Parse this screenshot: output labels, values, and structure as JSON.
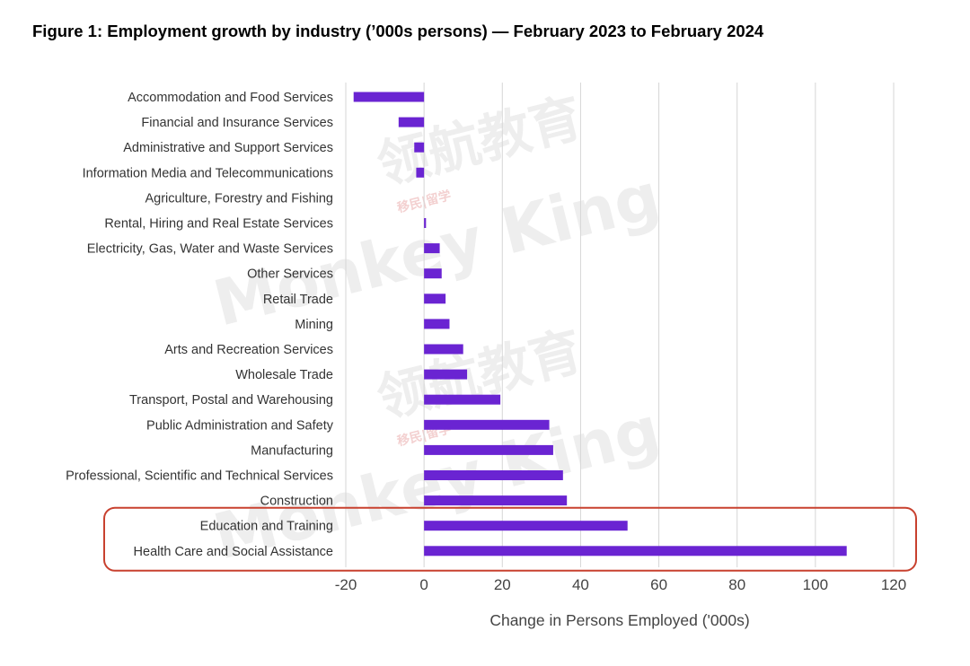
{
  "figure_title": "Figure 1: Employment growth by industry (’000s persons) — February 2023 to February 2024",
  "watermark": {
    "cn": "领航教育",
    "en": "Monkey King",
    "sub": "移民|留学"
  },
  "colors": {
    "bar": "#6a24d2",
    "highlight_box": "#c8412f",
    "grid": "#d6d6d6",
    "label": "#333333",
    "axis_label": "#444444"
  },
  "chart_data": {
    "type": "bar",
    "orientation": "horizontal",
    "title": "Figure 1: Employment growth by industry (’000s persons) — February 2023 to February 2024",
    "xlabel": "Change in Persons Employed ('000s)",
    "ylabel": "",
    "xlim": [
      -20,
      120
    ],
    "xticks": [
      -20,
      0,
      20,
      40,
      60,
      80,
      100,
      120
    ],
    "grid": "vertical",
    "legend": "none",
    "categories": [
      "Accommodation and Food Services",
      "Financial and Insurance Services",
      "Administrative and Support Services",
      "Information Media and Telecommunications",
      "Agriculture, Forestry and Fishing",
      "Rental, Hiring and Real Estate Services",
      "Electricity, Gas, Water and Waste Services",
      "Other Services",
      "Retail Trade",
      "Mining",
      "Arts and Recreation Services",
      "Wholesale Trade",
      "Transport, Postal and Warehousing",
      "Public Administration and Safety",
      "Manufacturing",
      "Professional, Scientific and Technical Services",
      "Construction",
      "Education and Training",
      "Health Care and Social Assistance"
    ],
    "values": [
      -18,
      -6.5,
      -2.5,
      -2,
      0,
      0.5,
      4,
      4.5,
      5.5,
      6.5,
      10,
      11,
      19.5,
      32,
      33,
      35.5,
      36.5,
      52,
      108
    ],
    "highlighted_categories": [
      "Education and Training",
      "Health Care and Social Assistance"
    ]
  }
}
